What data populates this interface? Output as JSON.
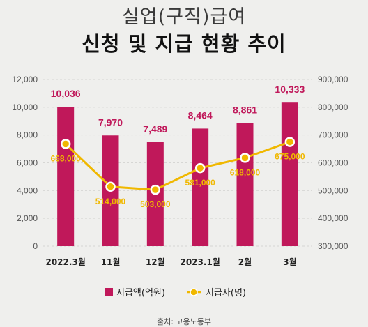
{
  "title_line1": "실업(구직)급여",
  "title_line2": "신청 및 지급 현황 추이",
  "source": "출처: 고용노동부",
  "chart_data": {
    "type": "bar",
    "categories": [
      "2022.3월",
      "11월",
      "12월",
      "2023.1월",
      "2월",
      "3월"
    ],
    "series": [
      {
        "name": "지급액(억원)",
        "type": "bar",
        "axis": "left",
        "color": "#c0185a",
        "values": [
          10036,
          7970,
          7489,
          8464,
          8861,
          10333
        ],
        "labels": [
          "10,036",
          "7,970",
          "7,489",
          "8,464",
          "8,861",
          "10,333"
        ]
      },
      {
        "name": "지급자(명)",
        "type": "line",
        "axis": "right",
        "color": "#f0b800",
        "values": [
          668000,
          514000,
          503000,
          581000,
          618000,
          675000
        ],
        "labels": [
          "668,000",
          "514,000",
          "503,000",
          "581,000",
          "618,000",
          "675,000"
        ]
      }
    ],
    "ylim_left": [
      0,
      12000
    ],
    "ylim_right": [
      300000,
      900000
    ],
    "left_ticks": [
      "0",
      "2,000",
      "4,000",
      "6,000",
      "8,000",
      "10,000",
      "12,000"
    ],
    "right_ticks": [
      "300,000",
      "400,000",
      "500,000",
      "600,000",
      "700,000",
      "800,000",
      "900,000"
    ],
    "legend_position": "bottom",
    "grid": true
  }
}
